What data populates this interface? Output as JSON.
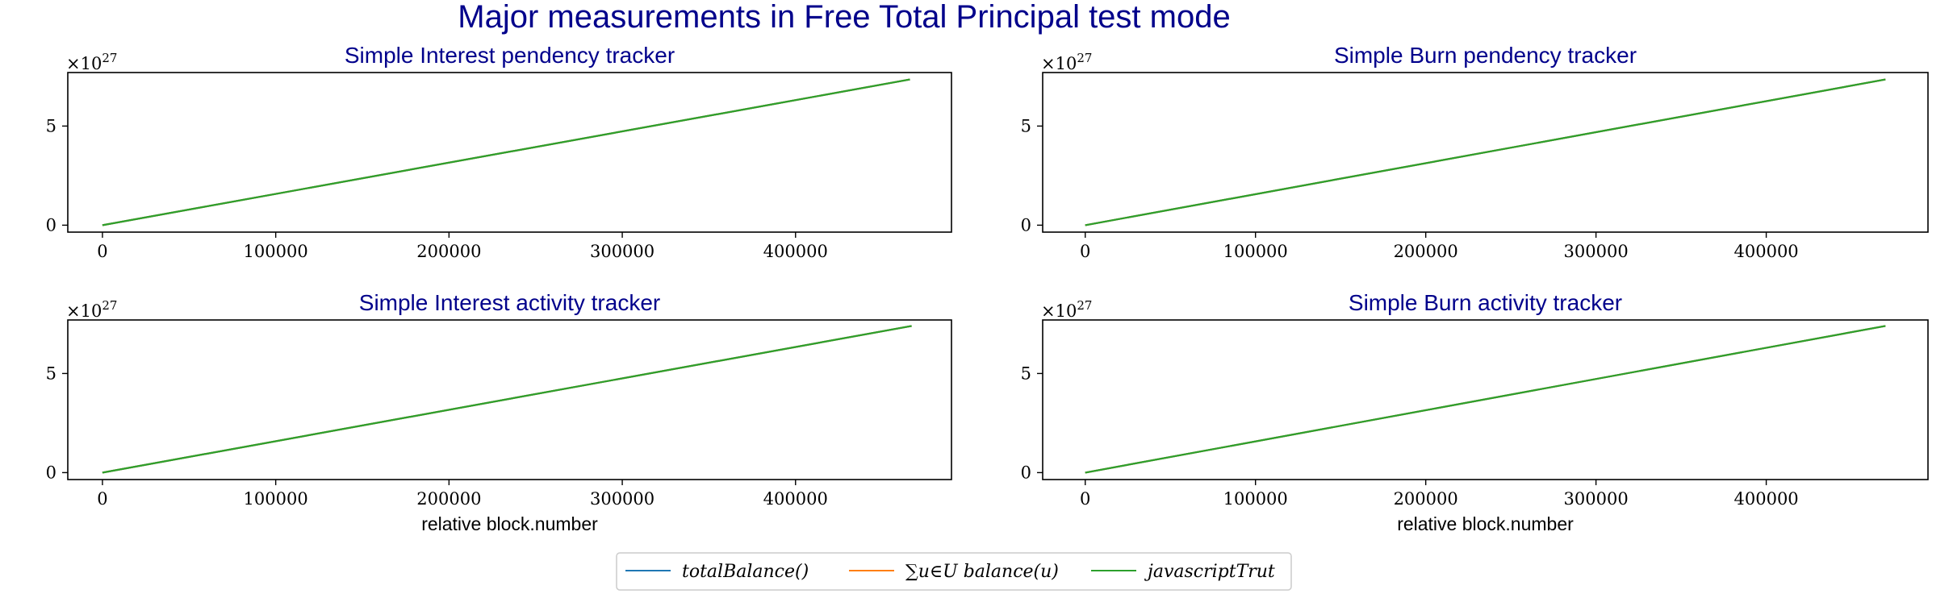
{
  "suptitle": "Major measurements in Free Total Principal test mode",
  "legend": {
    "entries": [
      {
        "label": "totalBalance()",
        "color": "#1f77b4"
      },
      {
        "label": "∑u∈U balance(u)",
        "color": "#ff7f0e"
      },
      {
        "label": "javascriptTrut",
        "color": "#2ca02c"
      }
    ]
  },
  "chart_data": [
    {
      "type": "line",
      "title": "Simple Interest pendency tracker",
      "xlabel": "",
      "y_offset_text": "×10^27",
      "y_multiplier_exp": "27",
      "xlim": [
        -20000,
        490000
      ],
      "ylim": [
        -0.35,
        7.7
      ],
      "xticks": [
        0,
        100000,
        200000,
        300000,
        400000
      ],
      "xtick_labels": [
        "0",
        "100000",
        "200000",
        "300000",
        "400000"
      ],
      "yticks": [
        0,
        5
      ],
      "ytick_labels": [
        "0",
        "5"
      ],
      "series": [
        {
          "name": "totalBalance()",
          "color": "#1f77b4",
          "x": [
            0,
            466000
          ],
          "y": [
            0,
            7.35
          ]
        },
        {
          "name": "∑u∈U balance(u)",
          "color": "#ff7f0e",
          "x": [
            0,
            466000
          ],
          "y": [
            0,
            7.35
          ]
        },
        {
          "name": "javascriptTrut",
          "color": "#2ca02c",
          "x": [
            0,
            466000
          ],
          "y": [
            0,
            7.35
          ]
        }
      ]
    },
    {
      "type": "line",
      "title": "Simple Burn pendency tracker",
      "xlabel": "",
      "y_offset_text": "×10^27",
      "y_multiplier_exp": "27",
      "xlim": [
        -25000,
        495000
      ],
      "ylim": [
        -0.35,
        7.7
      ],
      "xticks": [
        0,
        100000,
        200000,
        300000,
        400000
      ],
      "xtick_labels": [
        "0",
        "100000",
        "200000",
        "300000",
        "400000"
      ],
      "yticks": [
        0,
        5
      ],
      "ytick_labels": [
        "0",
        "5"
      ],
      "series": [
        {
          "name": "totalBalance()",
          "color": "#1f77b4",
          "x": [
            0,
            470000
          ],
          "y": [
            0,
            7.35
          ]
        },
        {
          "name": "∑u∈U balance(u)",
          "color": "#ff7f0e",
          "x": [
            0,
            470000
          ],
          "y": [
            0,
            7.35
          ]
        },
        {
          "name": "javascriptTrut",
          "color": "#2ca02c",
          "x": [
            0,
            470000
          ],
          "y": [
            0,
            7.35
          ]
        }
      ]
    },
    {
      "type": "line",
      "title": "Simple Interest activity tracker",
      "xlabel": "relative block.number",
      "y_offset_text": "×10^27",
      "y_multiplier_exp": "27",
      "xlim": [
        -20000,
        490000
      ],
      "ylim": [
        -0.35,
        7.7
      ],
      "xticks": [
        0,
        100000,
        200000,
        300000,
        400000
      ],
      "xtick_labels": [
        "0",
        "100000",
        "200000",
        "300000",
        "400000"
      ],
      "yticks": [
        0,
        5
      ],
      "ytick_labels": [
        "0",
        "5"
      ],
      "series": [
        {
          "name": "totalBalance()",
          "color": "#1f77b4",
          "x": [
            0,
            467000
          ],
          "y": [
            0,
            7.4
          ]
        },
        {
          "name": "∑u∈U balance(u)",
          "color": "#ff7f0e",
          "x": [
            0,
            467000
          ],
          "y": [
            0,
            7.4
          ]
        },
        {
          "name": "javascriptTrut",
          "color": "#2ca02c",
          "x": [
            0,
            467000
          ],
          "y": [
            0,
            7.4
          ]
        }
      ]
    },
    {
      "type": "line",
      "title": "Simple Burn activity tracker",
      "xlabel": "relative block.number",
      "y_offset_text": "×10^27",
      "y_multiplier_exp": "27",
      "xlim": [
        -25000,
        495000
      ],
      "ylim": [
        -0.35,
        7.7
      ],
      "xticks": [
        0,
        100000,
        200000,
        300000,
        400000
      ],
      "xtick_labels": [
        "0",
        "100000",
        "200000",
        "300000",
        "400000"
      ],
      "yticks": [
        0,
        5
      ],
      "ytick_labels": [
        "0",
        "5"
      ],
      "series": [
        {
          "name": "totalBalance()",
          "color": "#1f77b4",
          "x": [
            0,
            470000
          ],
          "y": [
            0,
            7.4
          ]
        },
        {
          "name": "∑u∈U balance(u)",
          "color": "#ff7f0e",
          "x": [
            0,
            470000
          ],
          "y": [
            0,
            7.4
          ]
        },
        {
          "name": "javascriptTrut",
          "color": "#2ca02c",
          "x": [
            0,
            470000
          ],
          "y": [
            0,
            7.4
          ]
        }
      ]
    }
  ]
}
